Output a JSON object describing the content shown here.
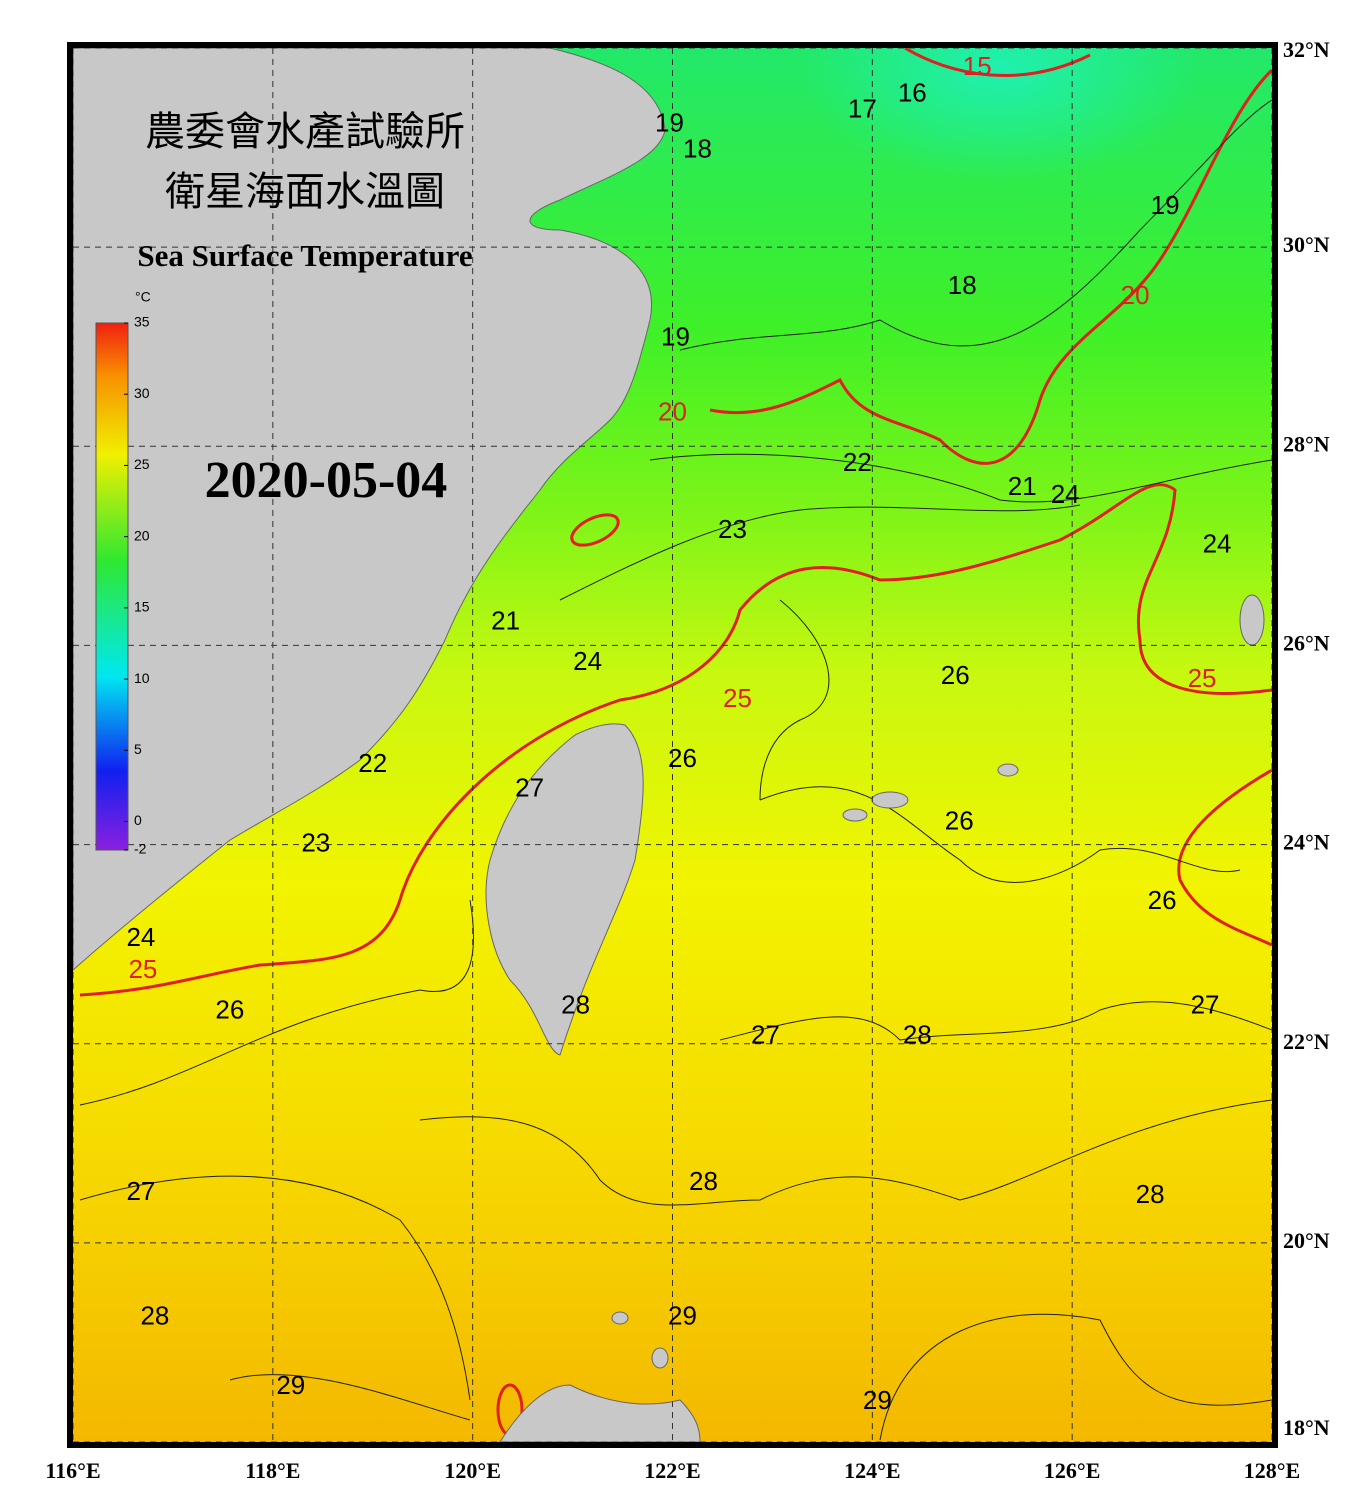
{
  "header": {
    "title_line1": "農委會水產試驗所",
    "title_line2": "衛星海面水溫圖",
    "subtitle": "Sea Surface Temperature",
    "date": "2020-05-04"
  },
  "colorbar": {
    "unit": "°C",
    "ticks": [
      35,
      30,
      25,
      20,
      15,
      10,
      5,
      0,
      -2
    ],
    "range": [
      -2,
      35
    ]
  },
  "map": {
    "lonlim": [
      116,
      128
    ],
    "latlim": [
      18,
      32
    ],
    "lon_ticks": [
      {
        "value": 116,
        "label": "116°E"
      },
      {
        "value": 118,
        "label": "118°E"
      },
      {
        "value": 120,
        "label": "120°E"
      },
      {
        "value": 122,
        "label": "122°E"
      },
      {
        "value": 124,
        "label": "124°E"
      },
      {
        "value": 126,
        "label": "126°E"
      },
      {
        "value": 128,
        "label": "128°E"
      }
    ],
    "lat_ticks": [
      {
        "value": 18,
        "label": "18°N"
      },
      {
        "value": 20,
        "label": "20°N"
      },
      {
        "value": 22,
        "label": "22°N"
      },
      {
        "value": 24,
        "label": "24°N"
      },
      {
        "value": 26,
        "label": "26°N"
      },
      {
        "value": 28,
        "label": "28°N"
      },
      {
        "value": 30,
        "label": "30°N"
      },
      {
        "value": 32,
        "label": "32°N"
      }
    ],
    "contour_labels": [
      {
        "value": 15,
        "lon": 125.05,
        "lat": 31.8
      },
      {
        "value": 16,
        "lon": 124.4,
        "lat": 31.53
      },
      {
        "value": 17,
        "lon": 123.9,
        "lat": 31.37
      },
      {
        "value": 19,
        "lon": 121.97,
        "lat": 31.23
      },
      {
        "value": 18,
        "lon": 122.25,
        "lat": 30.97
      },
      {
        "value": 19,
        "lon": 126.93,
        "lat": 30.4
      },
      {
        "value": 20,
        "lon": 126.63,
        "lat": 29.5
      },
      {
        "value": 18,
        "lon": 124.9,
        "lat": 29.6
      },
      {
        "value": 19,
        "lon": 122.03,
        "lat": 29.08
      },
      {
        "value": 20,
        "lon": 122.0,
        "lat": 28.33
      },
      {
        "value": 22,
        "lon": 123.85,
        "lat": 27.82
      },
      {
        "value": 21,
        "lon": 125.5,
        "lat": 27.58
      },
      {
        "value": 24,
        "lon": 125.93,
        "lat": 27.5
      },
      {
        "value": 23,
        "lon": 122.6,
        "lat": 27.15
      },
      {
        "value": 24,
        "lon": 127.45,
        "lat": 27.0
      },
      {
        "value": 21,
        "lon": 120.33,
        "lat": 26.23
      },
      {
        "value": 24,
        "lon": 121.15,
        "lat": 25.82
      },
      {
        "value": 26,
        "lon": 124.83,
        "lat": 25.68
      },
      {
        "value": 25,
        "lon": 127.3,
        "lat": 25.65
      },
      {
        "value": 25,
        "lon": 122.65,
        "lat": 25.45
      },
      {
        "value": 26,
        "lon": 122.1,
        "lat": 24.85
      },
      {
        "value": 27,
        "lon": 120.57,
        "lat": 24.55
      },
      {
        "value": 22,
        "lon": 119.0,
        "lat": 24.8
      },
      {
        "value": 26,
        "lon": 124.87,
        "lat": 24.22
      },
      {
        "value": 23,
        "lon": 118.43,
        "lat": 24.0
      },
      {
        "value": 26,
        "lon": 126.9,
        "lat": 23.42
      },
      {
        "value": 24,
        "lon": 116.68,
        "lat": 23.05
      },
      {
        "value": 25,
        "lon": 116.7,
        "lat": 22.73
      },
      {
        "value": 28,
        "lon": 121.03,
        "lat": 22.37
      },
      {
        "value": 26,
        "lon": 117.57,
        "lat": 22.32
      },
      {
        "value": 27,
        "lon": 127.33,
        "lat": 22.37
      },
      {
        "value": 27,
        "lon": 122.93,
        "lat": 22.07
      },
      {
        "value": 28,
        "lon": 124.45,
        "lat": 22.07
      },
      {
        "value": 27,
        "lon": 116.68,
        "lat": 20.5
      },
      {
        "value": 28,
        "lon": 122.31,
        "lat": 20.6
      },
      {
        "value": 28,
        "lon": 126.78,
        "lat": 20.47
      },
      {
        "value": 28,
        "lon": 116.82,
        "lat": 19.25
      },
      {
        "value": 29,
        "lon": 122.1,
        "lat": 19.25
      },
      {
        "value": 29,
        "lon": 118.18,
        "lat": 18.55
      },
      {
        "value": 29,
        "lon": 124.05,
        "lat": 18.4
      }
    ]
  }
}
